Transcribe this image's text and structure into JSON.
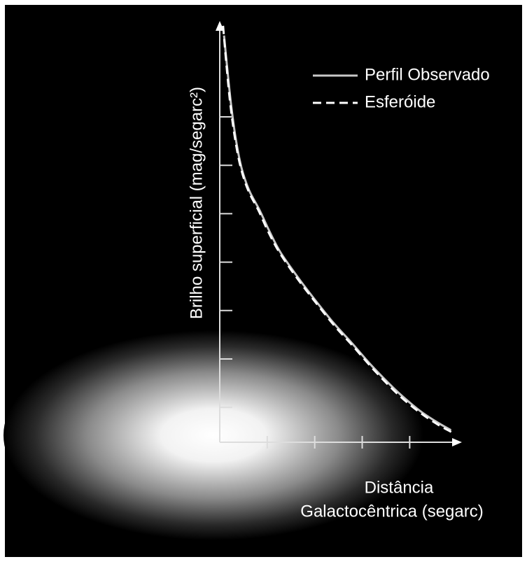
{
  "chart_data": {
    "type": "line",
    "x_label_lines": [
      "Distância",
      "Galactocêntrica (segarc)"
    ],
    "y_label": "Brilho superficial (mag/segarc²)",
    "series": [
      {
        "name": "Perfil Observado",
        "color": "#c8c8c8",
        "dash": false,
        "x": [
          0.09,
          0.16,
          0.24,
          0.34,
          0.46,
          0.62,
          0.84,
          1.05,
          1.28,
          1.65,
          2.03,
          2.4,
          2.78,
          3.2,
          3.67,
          4.0,
          4.27,
          4.6,
          4.87
        ],
        "values": [
          8.4,
          7.7,
          6.96,
          6.25,
          5.66,
          5.2,
          4.79,
          4.35,
          3.92,
          3.4,
          2.91,
          2.46,
          2.05,
          1.58,
          1.11,
          0.82,
          0.61,
          0.4,
          0.25
        ]
      },
      {
        "name": "Esferóide",
        "color": "#ffffff",
        "dash": true,
        "x": [
          0.07,
          0.14,
          0.22,
          0.32,
          0.44,
          0.6,
          0.82,
          1.03,
          1.27,
          1.65,
          2.05,
          2.43,
          2.82,
          3.25,
          3.72,
          4.05,
          4.32,
          4.62,
          4.9
        ],
        "values": [
          8.6,
          7.8,
          7.0,
          6.28,
          5.68,
          5.2,
          4.78,
          4.33,
          3.9,
          3.36,
          2.85,
          2.39,
          1.97,
          1.49,
          1.02,
          0.74,
          0.54,
          0.35,
          0.2
        ]
      }
    ],
    "xlim": [
      0,
      5.1
    ],
    "ylim": [
      0,
      8.7
    ],
    "xticks": [
      1,
      2,
      3,
      4
    ],
    "yticks": [
      0.72,
      1.72,
      2.72,
      3.72,
      4.72,
      5.72,
      6.72
    ],
    "tick_labels": false,
    "legend": "top-right"
  }
}
